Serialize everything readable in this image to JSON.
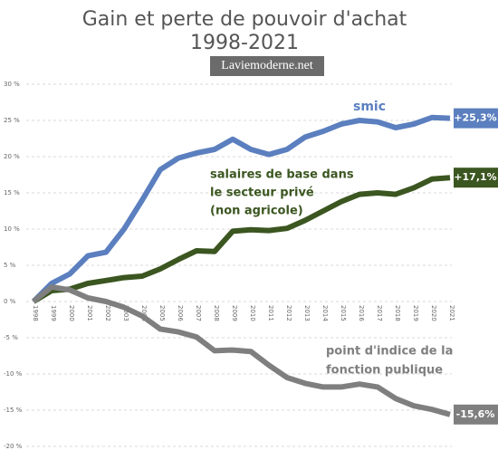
{
  "chart_data": {
    "type": "line",
    "title_lines": [
      "Gain et perte de pouvoir d'achat",
      "1998-2021"
    ],
    "watermark": "Laviemoderne.net",
    "x": [
      1998,
      1999,
      2000,
      2001,
      2002,
      2003,
      2004,
      2005,
      2006,
      2007,
      2008,
      2009,
      2010,
      2011,
      2012,
      2013,
      2014,
      2015,
      2016,
      2017,
      2018,
      2019,
      2020,
      2021
    ],
    "xlim": [
      1998,
      2021
    ],
    "ylim": [
      -20,
      30
    ],
    "yticks": [
      {
        "value": 30,
        "label": "30 %"
      },
      {
        "value": 25,
        "label": "25 %"
      },
      {
        "value": 20,
        "label": "20 %"
      },
      {
        "value": 15,
        "label": "15 %"
      },
      {
        "value": 10,
        "label": "10 %"
      },
      {
        "value": 5,
        "label": "5 %"
      },
      {
        "value": 0,
        "label": "0 %"
      },
      {
        "value": -5,
        "label": "-5 %"
      },
      {
        "value": -10,
        "label": "-10 %"
      },
      {
        "value": -15,
        "label": "-15 %"
      },
      {
        "value": -20,
        "label": "-20 %"
      }
    ],
    "grid": true,
    "series": [
      {
        "name": "smic",
        "color": "#5b7fbf",
        "end_label": "+25,3%",
        "values": [
          0,
          2.5,
          3.8,
          6.3,
          6.8,
          10,
          14,
          18.2,
          19.8,
          20.5,
          21,
          22.4,
          21,
          20.3,
          21,
          22.7,
          23.5,
          24.5,
          25,
          24.8,
          24,
          24.5,
          25.4,
          25.3
        ]
      },
      {
        "name_lines": [
          "salaires de base dans",
          "le secteur privé",
          "(non agricole)"
        ],
        "color": "#3b5620",
        "end_label": "+17,1%",
        "values": [
          0,
          1.5,
          1.7,
          2.5,
          2.9,
          3.3,
          3.5,
          4.5,
          5.8,
          7,
          6.9,
          9.7,
          9.9,
          9.8,
          10.1,
          11.2,
          12.5,
          13.8,
          14.8,
          15,
          14.8,
          15.7,
          16.9,
          17.1
        ]
      },
      {
        "name_lines": [
          "point d'indice de la",
          "fonction publique"
        ],
        "color": "#7f7f7f",
        "end_label": "-15,6%",
        "values": [
          0,
          2,
          1.6,
          0.5,
          0,
          -0.8,
          -2,
          -3.8,
          -4.2,
          -4.9,
          -6.8,
          -6.7,
          -6.9,
          -8.8,
          -10.5,
          -11.3,
          -11.8,
          -11.8,
          -11.4,
          -11.8,
          -13.4,
          -14.4,
          -14.9,
          -15.6
        ]
      }
    ]
  }
}
